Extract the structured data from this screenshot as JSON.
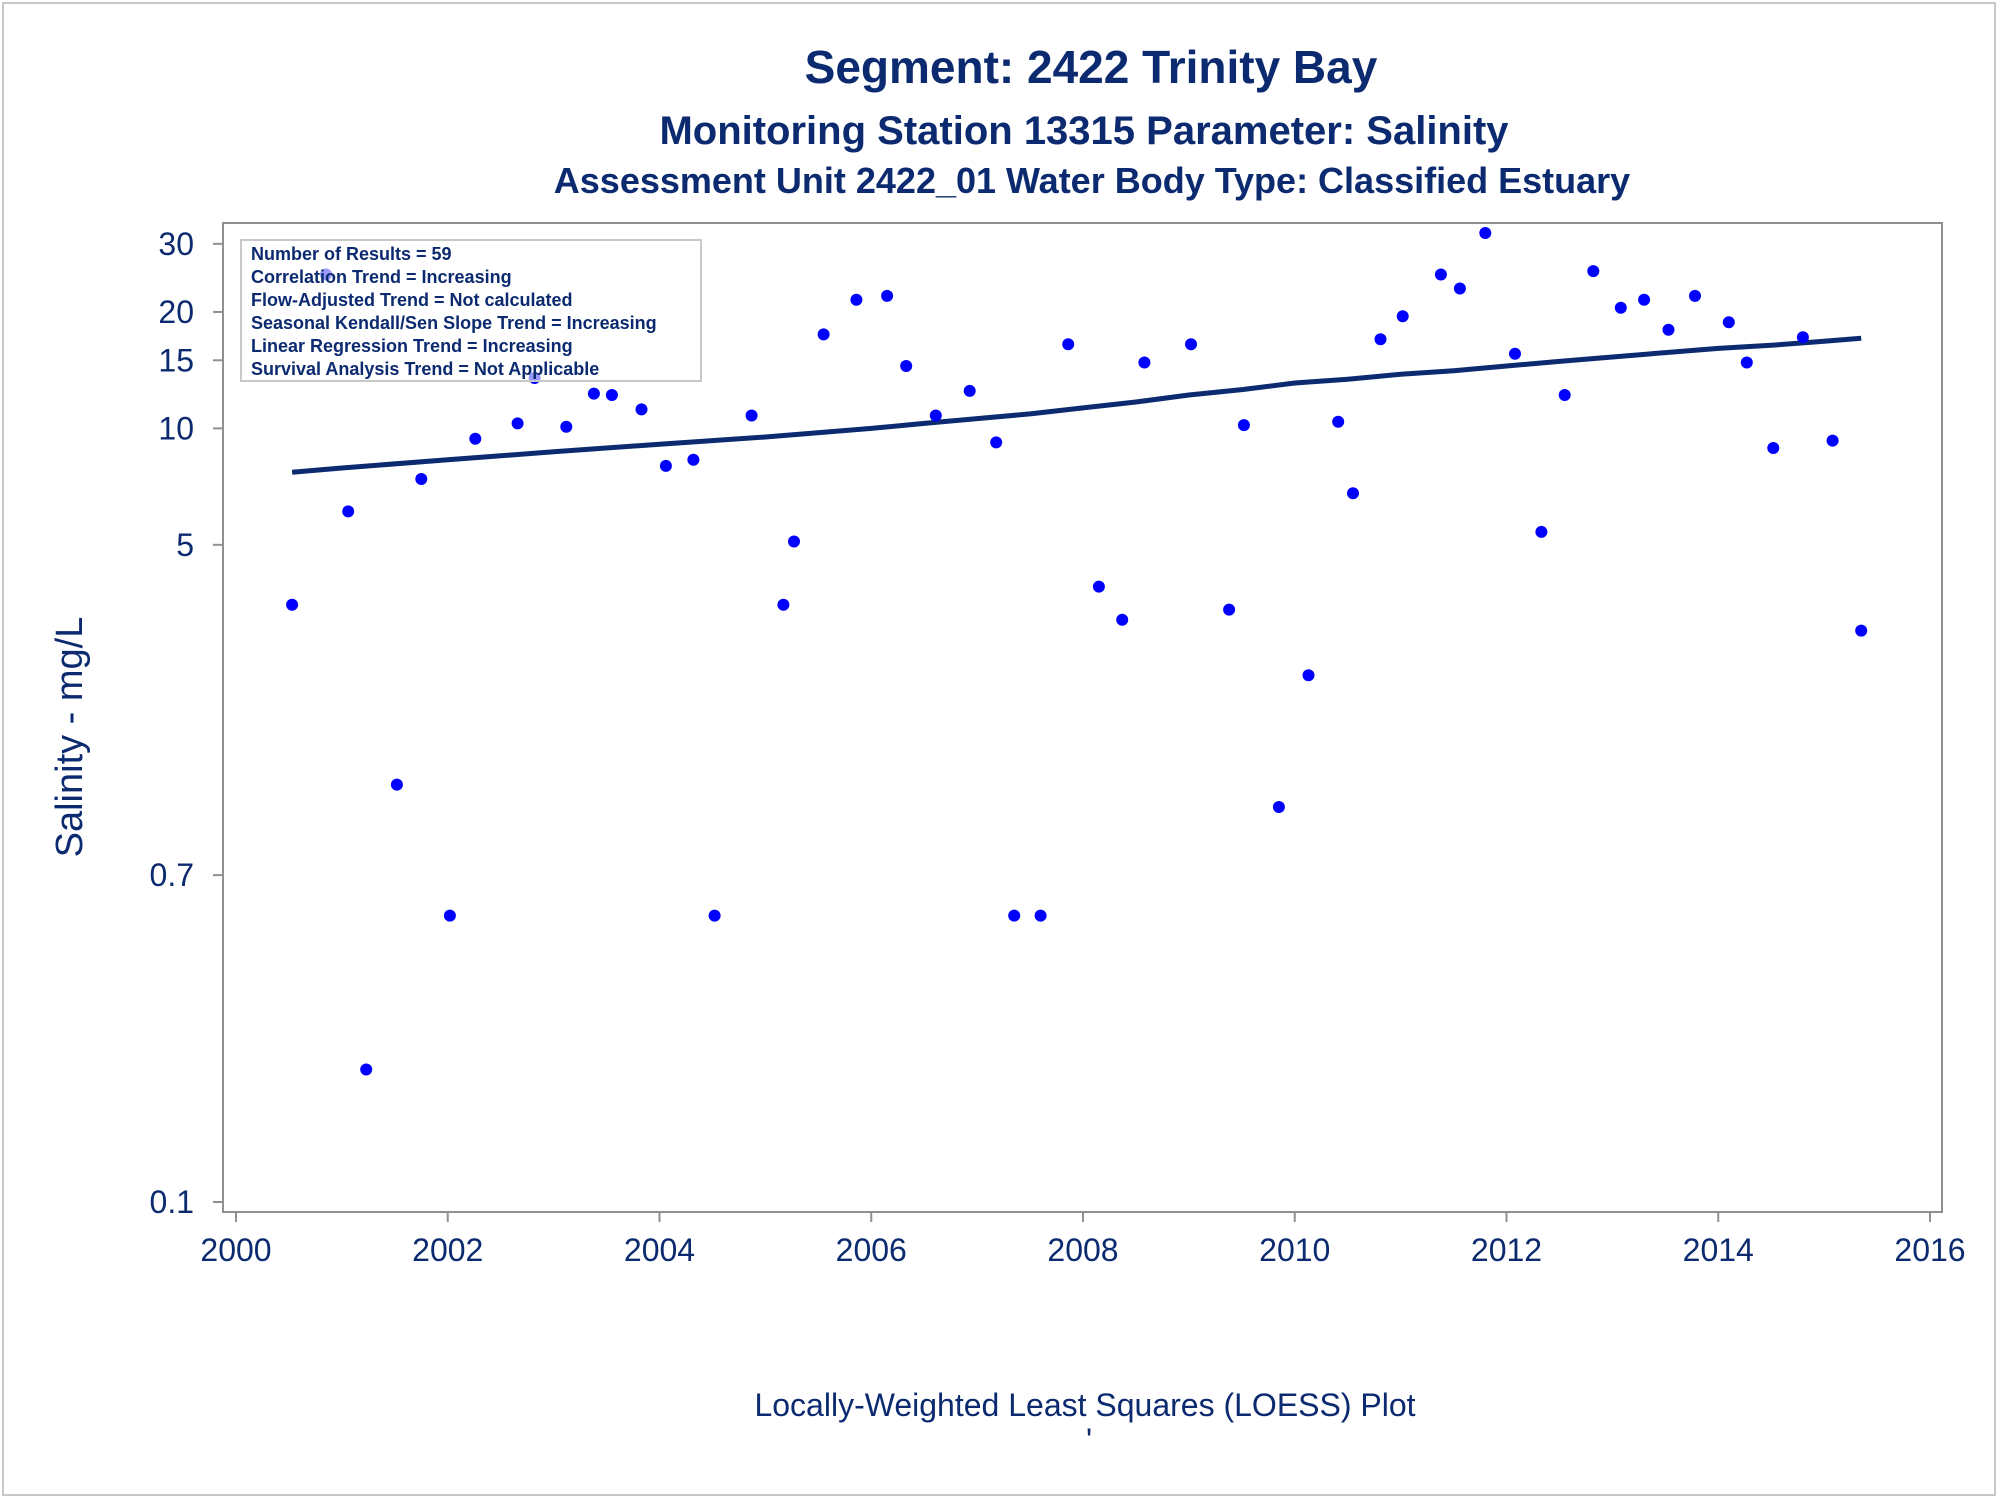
{
  "titles": {
    "line1": "Segment: 2422  Trinity Bay",
    "line2": "Monitoring Station 13315 Parameter: Salinity",
    "line3": "Assessment Unit 2422_01   Water Body Type: Classified Estuary"
  },
  "legend": {
    "lines": [
      "Number of Results = 59",
      "Correlation Trend = Increasing",
      "Flow-Adjusted Trend = Not calculated",
      "Seasonal Kendall/Sen Slope Trend = Increasing",
      "Linear Regression Trend = Increasing",
      "Survival Analysis Trend = Not Applicable"
    ]
  },
  "footer": {
    "caption": "Locally-Weighted Least Squares (LOESS) Plot",
    "mark": "'"
  },
  "colors": {
    "text": "#0b2a6f",
    "points": "#0000ff",
    "trend_line": "#0b2a6f",
    "axis": "#909090"
  },
  "chart_data": {
    "type": "scatter",
    "title": "Segment: 2422  Trinity Bay",
    "xlabel": "",
    "ylabel": "Salinity - mg/L",
    "y_scale": "log",
    "xlim": [
      2000,
      2016
    ],
    "ylim": [
      0.1,
      32
    ],
    "x_ticks": [
      2000,
      2002,
      2004,
      2006,
      2008,
      2010,
      2012,
      2014,
      2016
    ],
    "y_ticks": [
      0.1,
      0.7,
      5,
      10,
      15,
      20,
      30
    ],
    "grid": false,
    "legend_position": "top-left",
    "series": [
      {
        "type": "scatter",
        "x": [
          2000.53,
          2000.85,
          2001.06,
          2001.23,
          2001.52,
          2001.75,
          2002.02,
          2002.26,
          2002.66,
          2002.82,
          2003.12,
          2003.38,
          2003.55,
          2003.83,
          2004.06,
          2004.32,
          2004.52,
          2004.87,
          2005.17,
          2005.27,
          2005.55,
          2005.86,
          2006.15,
          2006.33,
          2006.61,
          2006.93,
          2007.18,
          2007.35,
          2007.6,
          2007.86,
          2008.15,
          2008.37,
          2008.58,
          2009.02,
          2009.38,
          2009.52,
          2009.85,
          2010.13,
          2010.41,
          2010.55,
          2010.81,
          2011.02,
          2011.38,
          2011.56,
          2011.8,
          2012.08,
          2012.33,
          2012.55,
          2012.82,
          2013.08,
          2013.3,
          2013.53,
          2013.78,
          2014.1,
          2014.27,
          2014.52,
          2014.8,
          2015.08,
          2015.35
        ],
        "y": [
          3.5,
          25,
          6.1,
          0.22,
          1.2,
          7.4,
          0.55,
          9.4,
          10.3,
          13.5,
          10.1,
          12.3,
          12.2,
          11.2,
          8.0,
          8.3,
          0.55,
          10.8,
          3.5,
          5.1,
          17.5,
          21.5,
          22,
          14.5,
          10.8,
          12.5,
          9.2,
          0.55,
          0.55,
          16.5,
          3.9,
          3.2,
          14.8,
          16.5,
          3.4,
          10.2,
          1.05,
          2.3,
          10.4,
          6.8,
          17.0,
          19.5,
          25,
          23,
          32,
          15.6,
          5.4,
          12.2,
          25.5,
          20.5,
          21.5,
          18.0,
          22.0,
          18.8,
          14.8,
          8.9,
          17.2,
          9.3,
          3.0
        ]
      },
      {
        "type": "line",
        "name": "",
        "x": [
          2000.53,
          2001,
          2002,
          2003,
          2004,
          2005,
          2006,
          2006.5,
          2007,
          2007.5,
          2008,
          2008.5,
          2009,
          2009.5,
          2010,
          2010.5,
          2011,
          2011.5,
          2012,
          2012.5,
          2013,
          2013.5,
          2014,
          2014.5,
          2015,
          2015.35
        ],
        "y": [
          7.7,
          7.9,
          8.3,
          8.7,
          9.1,
          9.5,
          10.0,
          10.3,
          10.6,
          10.9,
          11.3,
          11.7,
          12.2,
          12.6,
          13.1,
          13.4,
          13.8,
          14.1,
          14.5,
          14.9,
          15.3,
          15.7,
          16.1,
          16.4,
          16.8,
          17.1
        ]
      }
    ]
  }
}
